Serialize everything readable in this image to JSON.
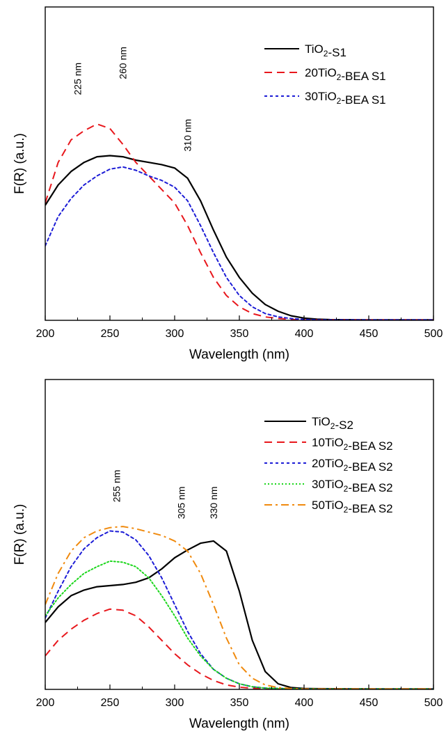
{
  "chart_data": [
    {
      "type": "line",
      "xlabel": "Wavelength (nm)",
      "ylabel": "F(R) (a.u.)",
      "xlim": [
        200,
        500
      ],
      "ylim": [
        0,
        1
      ],
      "x_ticks": [
        200,
        250,
        300,
        350,
        400,
        450,
        500
      ],
      "y_ticks_shown": false,
      "grid": false,
      "legend_position": "top-right",
      "annotations": [
        {
          "text": "225 nm",
          "x": 225,
          "y": 0.98
        },
        {
          "text": "260 nm",
          "x": 260,
          "y": 1.05
        },
        {
          "text": "310 nm",
          "x": 310,
          "y": 0.73
        }
      ],
      "series": [
        {
          "name_parts": [
            {
              "t": "TiO"
            },
            {
              "t": "2",
              "sub": true
            },
            {
              "t": "-S1"
            }
          ],
          "color": "#000000",
          "style": "solid",
          "x": [
            200,
            210,
            220,
            230,
            240,
            250,
            260,
            270,
            280,
            290,
            300,
            310,
            320,
            330,
            340,
            350,
            360,
            370,
            380,
            390,
            400,
            410,
            420,
            450,
            500
          ],
          "y": [
            0.51,
            0.6,
            0.66,
            0.7,
            0.725,
            0.73,
            0.725,
            0.71,
            0.7,
            0.69,
            0.675,
            0.63,
            0.53,
            0.4,
            0.28,
            0.19,
            0.12,
            0.07,
            0.04,
            0.02,
            0.01,
            0.005,
            0.003,
            0.002,
            0.002
          ]
        },
        {
          "name_parts": [
            {
              "t": "20TiO"
            },
            {
              "t": "2",
              "sub": true
            },
            {
              "t": "-BEA S1"
            }
          ],
          "color": "#e8171c",
          "style": "dashed",
          "x": [
            200,
            210,
            220,
            230,
            240,
            250,
            260,
            270,
            280,
            290,
            300,
            310,
            320,
            330,
            340,
            350,
            360,
            370,
            380,
            390,
            400,
            450,
            500
          ],
          "y": [
            0.52,
            0.7,
            0.8,
            0.84,
            0.87,
            0.85,
            0.78,
            0.7,
            0.64,
            0.58,
            0.52,
            0.42,
            0.3,
            0.19,
            0.11,
            0.06,
            0.03,
            0.015,
            0.008,
            0.004,
            0.002,
            0.002,
            0.002
          ]
        },
        {
          "name_parts": [
            {
              "t": "30TiO"
            },
            {
              "t": "2",
              "sub": true
            },
            {
              "t": "-BEA S1"
            }
          ],
          "color": "#1c1cd6",
          "style": "dotted",
          "x": [
            200,
            210,
            220,
            230,
            240,
            250,
            260,
            270,
            280,
            290,
            300,
            310,
            320,
            330,
            340,
            350,
            360,
            370,
            380,
            390,
            400,
            410,
            450,
            500
          ],
          "y": [
            0.33,
            0.46,
            0.54,
            0.6,
            0.64,
            0.67,
            0.68,
            0.665,
            0.64,
            0.62,
            0.59,
            0.53,
            0.42,
            0.3,
            0.19,
            0.11,
            0.06,
            0.03,
            0.015,
            0.008,
            0.004,
            0.002,
            0.002,
            0.002
          ]
        }
      ]
    },
    {
      "type": "line",
      "xlabel": "Wavelength (nm)",
      "ylabel": "F(R) (a.u.)",
      "xlim": [
        200,
        500
      ],
      "ylim": [
        0,
        1
      ],
      "x_ticks": [
        200,
        250,
        300,
        350,
        400,
        450,
        500
      ],
      "y_ticks_shown": false,
      "grid": false,
      "legend_position": "top-right",
      "annotations": [
        {
          "text": "255 nm",
          "x": 255,
          "y": 0.82
        },
        {
          "text": "305 nm",
          "x": 305,
          "y": 0.745
        },
        {
          "text": "330 nm",
          "x": 330,
          "y": 0.745
        }
      ],
      "series": [
        {
          "name_parts": [
            {
              "t": "TiO"
            },
            {
              "t": "2",
              "sub": true
            },
            {
              "t": "-S2"
            }
          ],
          "color": "#000000",
          "style": "solid",
          "x": [
            200,
            210,
            220,
            230,
            240,
            250,
            260,
            270,
            280,
            290,
            300,
            310,
            320,
            330,
            340,
            350,
            360,
            370,
            380,
            390,
            400,
            410,
            450,
            500
          ],
          "y": [
            0.3,
            0.37,
            0.42,
            0.445,
            0.46,
            0.465,
            0.47,
            0.48,
            0.5,
            0.54,
            0.59,
            0.625,
            0.655,
            0.665,
            0.62,
            0.44,
            0.22,
            0.08,
            0.025,
            0.008,
            0.004,
            0.003,
            0.002,
            0.002
          ]
        },
        {
          "name_parts": [
            {
              "t": "10TiO"
            },
            {
              "t": "2",
              "sub": true
            },
            {
              "t": "-BEA S2"
            }
          ],
          "color": "#e8171c",
          "style": "dashed",
          "x": [
            200,
            210,
            220,
            230,
            240,
            250,
            260,
            270,
            280,
            290,
            300,
            310,
            320,
            330,
            340,
            350,
            360,
            370,
            380,
            400,
            450,
            500
          ],
          "y": [
            0.15,
            0.22,
            0.27,
            0.31,
            0.34,
            0.36,
            0.355,
            0.33,
            0.28,
            0.22,
            0.16,
            0.11,
            0.07,
            0.04,
            0.02,
            0.01,
            0.005,
            0.003,
            0.002,
            0.002,
            0.002,
            0.002
          ]
        },
        {
          "name_parts": [
            {
              "t": "20TiO"
            },
            {
              "t": "2",
              "sub": true
            },
            {
              "t": "-BEA S2"
            }
          ],
          "color": "#1c1cd6",
          "style": "dotted",
          "x": [
            200,
            210,
            220,
            230,
            240,
            250,
            260,
            270,
            280,
            290,
            300,
            310,
            320,
            330,
            340,
            350,
            360,
            370,
            380,
            390,
            400,
            450,
            500
          ],
          "y": [
            0.32,
            0.44,
            0.55,
            0.63,
            0.68,
            0.71,
            0.705,
            0.67,
            0.6,
            0.5,
            0.38,
            0.26,
            0.16,
            0.09,
            0.05,
            0.025,
            0.012,
            0.006,
            0.004,
            0.003,
            0.002,
            0.002,
            0.002
          ]
        },
        {
          "name_parts": [
            {
              "t": "30TiO"
            },
            {
              "t": "2",
              "sub": true
            },
            {
              "t": "-BEA S2"
            }
          ],
          "color": "#1bd61b",
          "style": "fine-dotted",
          "x": [
            200,
            210,
            220,
            230,
            240,
            250,
            260,
            270,
            280,
            290,
            300,
            310,
            320,
            330,
            340,
            350,
            360,
            370,
            380,
            390,
            400,
            450,
            500
          ],
          "y": [
            0.33,
            0.41,
            0.47,
            0.52,
            0.55,
            0.575,
            0.57,
            0.55,
            0.5,
            0.42,
            0.33,
            0.23,
            0.15,
            0.09,
            0.05,
            0.025,
            0.012,
            0.006,
            0.004,
            0.003,
            0.002,
            0.002,
            0.002
          ]
        },
        {
          "name_parts": [
            {
              "t": "50TiO"
            },
            {
              "t": "2",
              "sub": true
            },
            {
              "t": "-BEA S2"
            }
          ],
          "color": "#f08a0e",
          "style": "dashdot",
          "x": [
            200,
            210,
            220,
            230,
            240,
            250,
            260,
            270,
            280,
            290,
            300,
            310,
            320,
            330,
            340,
            350,
            360,
            370,
            380,
            390,
            400,
            450,
            500
          ],
          "y": [
            0.38,
            0.52,
            0.62,
            0.68,
            0.71,
            0.725,
            0.73,
            0.72,
            0.705,
            0.69,
            0.665,
            0.62,
            0.52,
            0.38,
            0.23,
            0.11,
            0.05,
            0.02,
            0.008,
            0.004,
            0.002,
            0.002,
            0.002
          ]
        }
      ]
    }
  ]
}
